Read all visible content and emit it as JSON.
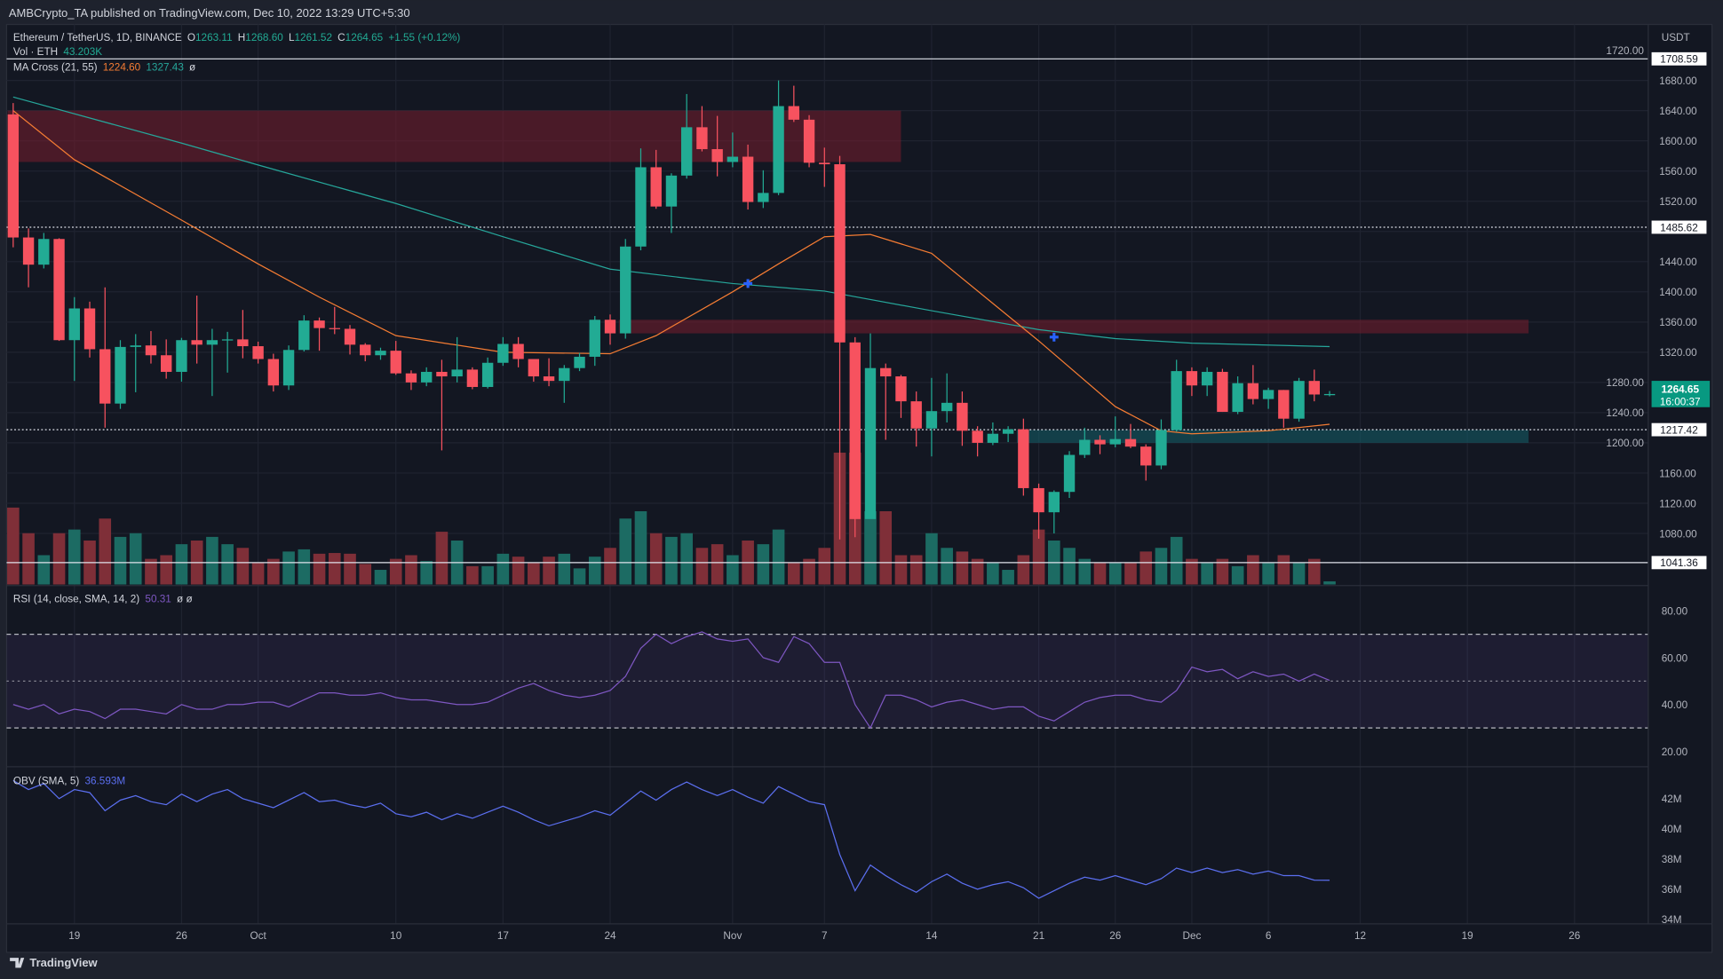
{
  "publish_line": "AMBCrypto_TA published on TradingView.com, Dec 10, 2022 13:29 UTC+5:30",
  "legend": {
    "symbol": "Ethereum / TetherUS, 1D, BINANCE",
    "o_label": "O",
    "o": "1263.11",
    "h_label": "H",
    "h": "1268.60",
    "l_label": "L",
    "l": "1261.52",
    "c_label": "C",
    "c": "1264.65",
    "change": "+1.55 (+0.12%)",
    "vol_label": "Vol · ETH",
    "vol": "43.203K",
    "ma_label": "MA Cross (21, 55)",
    "ma_fast": "1224.60",
    "ma_slow": "1327.43",
    "ma_extra": "ø",
    "rsi_label": "RSI (14, close, SMA, 14, 2)",
    "rsi_value": "50.31",
    "rsi_extra": "ø ø",
    "obv_label": "OBV (SMA, 5)",
    "obv_value": "36.593M"
  },
  "price_axis": {
    "unit": "USDT",
    "ticks": [
      "1720.00",
      "1680.00",
      "1640.00",
      "1600.00",
      "1560.00",
      "1520.00",
      "1440.00",
      "1400.00",
      "1360.00",
      "1320.00",
      "1280.00",
      "1240.00",
      "1200.00",
      "1160.00",
      "1120.00",
      "1080.00"
    ],
    "levels": [
      "1708.59",
      "1485.62",
      "1217.42",
      "1041.36"
    ],
    "last_price": "1264.65",
    "countdown": "16:00:37"
  },
  "rsi_axis": {
    "ticks": [
      "80.00",
      "60.00",
      "40.00",
      "20.00"
    ]
  },
  "obv_axis": {
    "ticks": [
      "42M",
      "40M",
      "38M",
      "36M",
      "34M"
    ]
  },
  "time_axis": [
    {
      "date": "2022-09-19",
      "label": "19"
    },
    {
      "date": "2022-09-26",
      "label": "26"
    },
    {
      "date": "2022-10-01",
      "label": "Oct"
    },
    {
      "date": "2022-10-10",
      "label": "10"
    },
    {
      "date": "2022-10-17",
      "label": "17"
    },
    {
      "date": "2022-10-24",
      "label": "24"
    },
    {
      "date": "2022-11-01",
      "label": "Nov"
    },
    {
      "date": "2022-11-07",
      "label": "7"
    },
    {
      "date": "2022-11-14",
      "label": "14"
    },
    {
      "date": "2022-11-21",
      "label": "21"
    },
    {
      "date": "2022-11-26",
      "label": "26"
    },
    {
      "date": "2022-12-01",
      "label": "Dec"
    },
    {
      "date": "2022-12-06",
      "label": "6"
    },
    {
      "date": "2022-12-12",
      "label": "12"
    },
    {
      "date": "2022-12-19",
      "label": "19"
    },
    {
      "date": "2022-12-26",
      "label": "26"
    }
  ],
  "footer": {
    "brand": "TradingView"
  },
  "colors": {
    "up": "#22ab94",
    "down": "#f7525f",
    "vol_up": "#1c6b63",
    "vol_down": "#7f2f38",
    "ma_fast": "#f57c33",
    "ma_slow": "#26a69a",
    "rsi": "#7e57c2",
    "obv": "#5b6ff0",
    "background": "#131722",
    "cross": "#2962ff"
  },
  "chart_data": {
    "type": "candlestick",
    "ylim": [
      1020,
      1730
    ],
    "columns": [
      "date",
      "open",
      "high",
      "low",
      "close",
      "volume_k",
      "rsi",
      "obv_m"
    ],
    "candles": [
      [
        "2022-09-15",
        1635,
        1650,
        1459,
        1472,
        1050,
        40,
        43.2
      ],
      [
        "2022-09-16",
        1472,
        1484,
        1406,
        1436,
        700,
        38,
        42.6
      ],
      [
        "2022-09-17",
        1436,
        1478,
        1431,
        1470,
        400,
        40,
        43.0
      ],
      [
        "2022-09-18",
        1470,
        1471,
        1335,
        1336,
        700,
        36,
        42.0
      ],
      [
        "2022-09-19",
        1336,
        1393,
        1282,
        1378,
        750,
        38,
        42.6
      ],
      [
        "2022-09-20",
        1378,
        1387,
        1313,
        1324,
        600,
        37,
        42.4
      ],
      [
        "2022-09-21",
        1324,
        1406,
        1220,
        1252,
        900,
        34,
        41.2
      ],
      [
        "2022-09-22",
        1252,
        1336,
        1245,
        1327,
        650,
        38,
        41.9
      ],
      [
        "2022-09-23",
        1327,
        1344,
        1267,
        1329,
        700,
        38,
        42.2
      ],
      [
        "2022-09-24",
        1329,
        1348,
        1305,
        1316,
        350,
        37,
        41.8
      ],
      [
        "2022-09-25",
        1316,
        1337,
        1285,
        1294,
        400,
        36,
        41.6
      ],
      [
        "2022-09-26",
        1294,
        1339,
        1281,
        1336,
        550,
        40,
        42.3
      ],
      [
        "2022-09-27",
        1336,
        1395,
        1305,
        1330,
        600,
        38,
        41.8
      ],
      [
        "2022-09-28",
        1330,
        1351,
        1262,
        1336,
        650,
        38,
        42.3
      ],
      [
        "2022-09-29",
        1336,
        1347,
        1293,
        1337,
        550,
        40,
        42.6
      ],
      [
        "2022-09-30",
        1337,
        1376,
        1312,
        1328,
        500,
        40,
        42.0
      ],
      [
        "2022-10-01",
        1328,
        1334,
        1305,
        1311,
        300,
        41,
        41.7
      ],
      [
        "2022-10-02",
        1311,
        1318,
        1268,
        1276,
        350,
        41,
        41.4
      ],
      [
        "2022-10-03",
        1276,
        1329,
        1270,
        1323,
        450,
        39,
        41.9
      ],
      [
        "2022-10-04",
        1323,
        1369,
        1321,
        1362,
        480,
        42,
        42.4
      ],
      [
        "2022-10-05",
        1362,
        1366,
        1322,
        1352,
        420,
        45,
        41.8
      ],
      [
        "2022-10-06",
        1352,
        1380,
        1344,
        1351,
        430,
        45,
        41.9
      ],
      [
        "2022-10-07",
        1351,
        1356,
        1317,
        1330,
        420,
        44,
        41.6
      ],
      [
        "2022-10-08",
        1330,
        1332,
        1308,
        1316,
        280,
        44,
        41.4
      ],
      [
        "2022-10-09",
        1316,
        1326,
        1310,
        1322,
        200,
        45,
        41.7
      ],
      [
        "2022-10-10",
        1322,
        1335,
        1290,
        1292,
        350,
        43,
        41.0
      ],
      [
        "2022-10-11",
        1292,
        1296,
        1270,
        1280,
        400,
        42,
        40.8
      ],
      [
        "2022-10-12",
        1280,
        1300,
        1275,
        1294,
        320,
        42,
        41.1
      ],
      [
        "2022-10-13",
        1294,
        1310,
        1190,
        1288,
        720,
        41,
        40.6
      ],
      [
        "2022-10-14",
        1288,
        1340,
        1280,
        1297,
        600,
        40,
        41.0
      ],
      [
        "2022-10-15",
        1297,
        1300,
        1271,
        1274,
        250,
        40,
        40.7
      ],
      [
        "2022-10-16",
        1274,
        1313,
        1272,
        1306,
        250,
        41,
        41.1
      ],
      [
        "2022-10-17",
        1306,
        1340,
        1302,
        1331,
        420,
        44,
        41.5
      ],
      [
        "2022-10-18",
        1331,
        1340,
        1300,
        1311,
        380,
        47,
        41.1
      ],
      [
        "2022-10-19",
        1311,
        1311,
        1281,
        1288,
        300,
        49,
        40.6
      ],
      [
        "2022-10-20",
        1288,
        1312,
        1275,
        1282,
        380,
        46,
        40.2
      ],
      [
        "2022-10-21",
        1282,
        1303,
        1253,
        1299,
        420,
        44,
        40.5
      ],
      [
        "2022-10-22",
        1299,
        1319,
        1295,
        1314,
        220,
        43,
        40.8
      ],
      [
        "2022-10-23",
        1314,
        1368,
        1302,
        1363,
        380,
        44,
        41.2
      ],
      [
        "2022-10-24",
        1363,
        1370,
        1330,
        1345,
        500,
        46,
        40.9
      ],
      [
        "2022-10-25",
        1345,
        1470,
        1338,
        1460,
        900,
        52,
        41.7
      ],
      [
        "2022-10-26",
        1460,
        1590,
        1455,
        1565,
        1000,
        64,
        42.5
      ],
      [
        "2022-10-27",
        1565,
        1588,
        1510,
        1513,
        700,
        70,
        41.9
      ],
      [
        "2022-10-28",
        1513,
        1557,
        1478,
        1554,
        650,
        66,
        42.6
      ],
      [
        "2022-10-29",
        1554,
        1662,
        1550,
        1618,
        700,
        69,
        43.1
      ],
      [
        "2022-10-30",
        1618,
        1646,
        1586,
        1589,
        500,
        71,
        42.6
      ],
      [
        "2022-10-31",
        1589,
        1633,
        1553,
        1572,
        550,
        68,
        42.2
      ],
      [
        "2022-11-01",
        1572,
        1611,
        1565,
        1579,
        400,
        67,
        42.6
      ],
      [
        "2022-11-02",
        1579,
        1595,
        1509,
        1519,
        600,
        68,
        42.1
      ],
      [
        "2022-11-03",
        1519,
        1561,
        1511,
        1531,
        550,
        60,
        41.7
      ],
      [
        "2022-11-04",
        1531,
        1680,
        1528,
        1646,
        750,
        58,
        42.8
      ],
      [
        "2022-11-05",
        1646,
        1673,
        1625,
        1628,
        300,
        69,
        42.3
      ],
      [
        "2022-11-06",
        1628,
        1634,
        1565,
        1571,
        350,
        66,
        41.8
      ],
      [
        "2022-11-07",
        1571,
        1591,
        1539,
        1569,
        500,
        58,
        41.6
      ],
      [
        "2022-11-08",
        1569,
        1580,
        1072,
        1333,
        1800,
        58,
        38.3
      ],
      [
        "2022-11-09",
        1333,
        1340,
        1075,
        1099,
        1800,
        40,
        35.9
      ],
      [
        "2022-11-10",
        1099,
        1345,
        1103,
        1299,
        1000,
        30,
        37.6
      ],
      [
        "2022-11-11",
        1299,
        1305,
        1204,
        1288,
        1000,
        44,
        36.9
      ],
      [
        "2022-11-12",
        1288,
        1290,
        1233,
        1255,
        400,
        44,
        36.3
      ],
      [
        "2022-11-13",
        1255,
        1268,
        1195,
        1219,
        400,
        42,
        35.8
      ],
      [
        "2022-11-14",
        1219,
        1286,
        1182,
        1242,
        700,
        39,
        36.5
      ],
      [
        "2022-11-15",
        1242,
        1292,
        1227,
        1253,
        500,
        41,
        37.0
      ],
      [
        "2022-11-16",
        1253,
        1268,
        1196,
        1216,
        450,
        42,
        36.4
      ],
      [
        "2022-11-17",
        1216,
        1222,
        1182,
        1200,
        350,
        40,
        36.0
      ],
      [
        "2022-11-18",
        1200,
        1227,
        1197,
        1212,
        300,
        38,
        36.3
      ],
      [
        "2022-11-19",
        1212,
        1222,
        1201,
        1218,
        200,
        39,
        36.5
      ],
      [
        "2022-11-20",
        1218,
        1232,
        1130,
        1140,
        400,
        39,
        36.1
      ],
      [
        "2022-11-21",
        1140,
        1146,
        1073,
        1108,
        750,
        35,
        35.4
      ],
      [
        "2022-11-22",
        1108,
        1137,
        1080,
        1135,
        600,
        33,
        35.9
      ],
      [
        "2022-11-23",
        1135,
        1189,
        1127,
        1184,
        500,
        37,
        36.4
      ],
      [
        "2022-11-24",
        1184,
        1220,
        1180,
        1204,
        350,
        41,
        36.8
      ],
      [
        "2022-11-25",
        1204,
        1210,
        1185,
        1198,
        300,
        43,
        36.6
      ],
      [
        "2022-11-26",
        1198,
        1235,
        1194,
        1205,
        300,
        44,
        36.9
      ],
      [
        "2022-11-27",
        1205,
        1225,
        1193,
        1195,
        300,
        44,
        36.6
      ],
      [
        "2022-11-28",
        1195,
        1198,
        1150,
        1170,
        450,
        42,
        36.3
      ],
      [
        "2022-11-29",
        1170,
        1231,
        1165,
        1217,
        500,
        41,
        36.7
      ],
      [
        "2022-11-30",
        1217,
        1310,
        1215,
        1295,
        650,
        46,
        37.4
      ],
      [
        "2022-12-01",
        1295,
        1300,
        1262,
        1276,
        350,
        56,
        37.1
      ],
      [
        "2022-12-02",
        1276,
        1300,
        1262,
        1294,
        300,
        54,
        37.4
      ],
      [
        "2022-12-03",
        1294,
        1298,
        1241,
        1241,
        350,
        55,
        37.1
      ],
      [
        "2022-12-04",
        1241,
        1288,
        1238,
        1279,
        250,
        51,
        37.3
      ],
      [
        "2022-12-05",
        1279,
        1303,
        1251,
        1258,
        400,
        54,
        37.0
      ],
      [
        "2022-12-06",
        1258,
        1273,
        1245,
        1270,
        300,
        52,
        37.2
      ],
      [
        "2022-12-07",
        1270,
        1270,
        1220,
        1232,
        400,
        53,
        36.9
      ],
      [
        "2022-12-08",
        1232,
        1286,
        1228,
        1282,
        300,
        50,
        36.9
      ],
      [
        "2022-12-09",
        1282,
        1297,
        1255,
        1264,
        350,
        53,
        36.6
      ],
      [
        "2022-12-10",
        1263.11,
        1268.6,
        1261.52,
        1264.65,
        43.2,
        50.31,
        36.593
      ]
    ],
    "ma_fast": [
      [
        "2022-09-15",
        1640
      ],
      [
        "2022-09-19",
        1575
      ],
      [
        "2022-09-26",
        1495
      ],
      [
        "2022-10-01",
        1437
      ],
      [
        "2022-10-05",
        1393
      ],
      [
        "2022-10-10",
        1342
      ],
      [
        "2022-10-17",
        1320
      ],
      [
        "2022-10-24",
        1318
      ],
      [
        "2022-10-27",
        1342
      ],
      [
        "2022-11-01",
        1400
      ],
      [
        "2022-11-04",
        1437
      ],
      [
        "2022-11-07",
        1473
      ],
      [
        "2022-11-10",
        1476
      ],
      [
        "2022-11-14",
        1451
      ],
      [
        "2022-11-21",
        1335
      ],
      [
        "2022-11-26",
        1248
      ],
      [
        "2022-11-29",
        1216
      ],
      [
        "2022-12-01",
        1212
      ],
      [
        "2022-12-06",
        1216
      ],
      [
        "2022-12-10",
        1224.6
      ]
    ],
    "ma_slow": [
      [
        "2022-09-15",
        1658
      ],
      [
        "2022-09-26",
        1597
      ],
      [
        "2022-10-01",
        1568
      ],
      [
        "2022-10-10",
        1517
      ],
      [
        "2022-10-17",
        1473
      ],
      [
        "2022-10-24",
        1430
      ],
      [
        "2022-11-01",
        1411
      ],
      [
        "2022-11-07",
        1401
      ],
      [
        "2022-11-14",
        1375
      ],
      [
        "2022-11-21",
        1350
      ],
      [
        "2022-11-26",
        1338
      ],
      [
        "2022-12-01",
        1332
      ],
      [
        "2022-12-10",
        1327.43
      ]
    ],
    "crosses": [
      [
        "2022-11-02",
        1411
      ],
      [
        "2022-11-22",
        1340
      ]
    ],
    "zones": [
      {
        "from": "2022-09-15",
        "to": "2022-11-12",
        "top": 1640,
        "bottom": 1572,
        "kind": "supply"
      },
      {
        "from": "2022-10-25",
        "to": "2022-12-23",
        "top": 1363,
        "bottom": 1345,
        "kind": "supply"
      },
      {
        "from": "2022-11-20",
        "to": "2022-12-23",
        "top": 1217,
        "bottom": 1200,
        "kind": "demand"
      }
    ],
    "levels": [
      {
        "value": 1708.59,
        "style": "solid"
      },
      {
        "value": 1485.62,
        "style": "dotted"
      },
      {
        "value": 1217.42,
        "style": "dotted"
      },
      {
        "value": 1041.36,
        "style": "solid"
      }
    ],
    "rsi_bands": [
      70,
      50,
      30
    ],
    "rsi_ylim": [
      10,
      90
    ],
    "obv_ylim": [
      33.2,
      43.6
    ]
  }
}
